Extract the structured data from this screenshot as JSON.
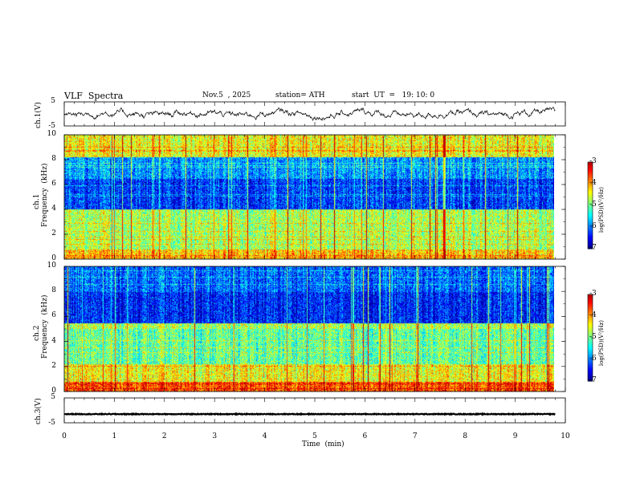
{
  "header": {
    "title": "VLF  Spectra",
    "date": "Nov.5  , 2025",
    "station": "station= ATH",
    "start": "start  UT  =   19: 10: 0"
  },
  "colors": {
    "waveform": "#000000",
    "colormap": [
      "#000000",
      "#00007f",
      "#0000ff",
      "#007fff",
      "#00ffff",
      "#7fff7f",
      "#ffff00",
      "#ff7f00",
      "#ff0000",
      "#ffffff"
    ]
  },
  "chart_data": [
    {
      "type": "line",
      "panel": "ch1-waveform",
      "ylabel": "ch.1(V)",
      "ylim": [
        -5,
        5
      ],
      "yticks": [
        "5",
        "-5"
      ],
      "xlim": [
        0,
        10
      ],
      "series": [
        {
          "values": "noisy waveform fluctuating roughly between -3 and 2 V"
        }
      ]
    },
    {
      "type": "heatmap",
      "panel": "ch1-spectrogram",
      "ylabel": "ch.1\nFrequency  (kHz)",
      "ylim": [
        0,
        10
      ],
      "yticks": [
        "0",
        "2",
        "4",
        "6",
        "8",
        "10"
      ],
      "xlim": [
        0,
        10
      ],
      "colorbar": {
        "label": "log(PSD)(V²/Hz)",
        "range": [
          -7,
          -3
        ],
        "ticks": [
          "-3",
          "-4",
          "-5",
          "-6",
          "-7"
        ]
      }
    },
    {
      "type": "heatmap",
      "panel": "ch2-spectrogram",
      "ylabel": "ch.2\nFrequency  (kHz)",
      "ylim": [
        0,
        10
      ],
      "yticks": [
        "0",
        "2",
        "4",
        "6",
        "8",
        "10"
      ],
      "xlim": [
        0,
        10
      ],
      "colorbar": {
        "label": "log(PSD)(V²/Hz)",
        "range": [
          -7,
          -3
        ],
        "ticks": [
          "-3",
          "-4",
          "-5",
          "-6",
          "-7"
        ]
      }
    },
    {
      "type": "line",
      "panel": "ch3-waveform",
      "ylabel": "ch.3(V)",
      "ylim": [
        -5,
        5
      ],
      "yticks": [
        "5",
        "-5"
      ],
      "xlim": [
        0,
        10
      ],
      "series": [
        {
          "values": "nearly constant at about -1.5 V"
        }
      ]
    }
  ],
  "xaxis": {
    "label": "Time  (min)",
    "ticks": [
      "0",
      "1",
      "2",
      "3",
      "4",
      "5",
      "6",
      "7",
      "8",
      "9",
      "10"
    ]
  },
  "ylabels": {
    "ch1v": "ch.1(V)",
    "ch1f": "ch.1",
    "ch1fu": "Frequency  (kHz)",
    "ch2f": "ch.2",
    "ch2fu": "Frequency  (kHz)",
    "ch3v": "ch.3(V)",
    "cb": "log(PSD)(V²/Hz)"
  }
}
